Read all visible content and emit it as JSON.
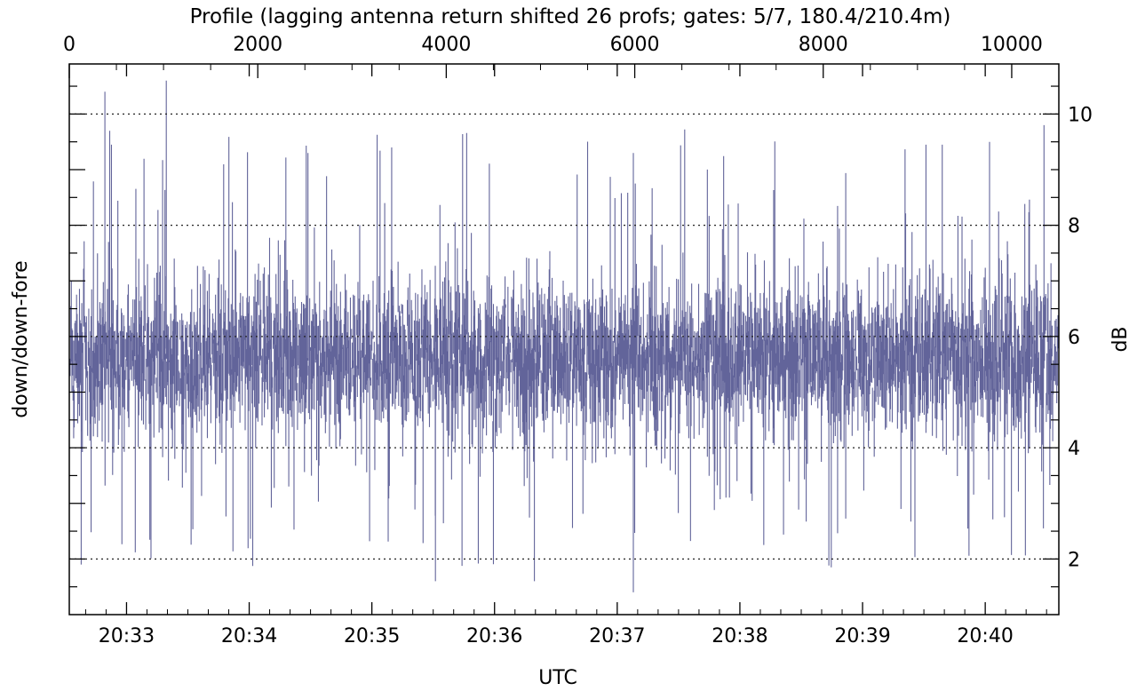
{
  "chart_data": {
    "type": "line",
    "title": "Profile (lagging antenna return shifted 26 profs; gates: 5/7, 180.4/210.4m)",
    "xlabel": "UTC",
    "ylabel_left": "down/down-fore",
    "ylabel_right": "dB",
    "bottom_axis": {
      "tick_labels": [
        "20:33",
        "20:34",
        "20:35",
        "20:36",
        "20:37",
        "20:38",
        "20:39",
        "20:40"
      ],
      "range_minutes": [
        "20:32:32",
        "20:40:36"
      ]
    },
    "top_axis": {
      "tick_labels": [
        "0",
        "2000",
        "4000",
        "6000",
        "8000",
        "10000"
      ],
      "range": [
        0,
        10500
      ]
    },
    "ylim": [
      1.0,
      10.9
    ],
    "right_tick_labels": [
      "2",
      "4",
      "6",
      "8",
      "10"
    ],
    "gridlines_y": [
      2,
      4,
      6,
      8,
      10
    ],
    "grid": "dotted-horizontal",
    "series": [
      {
        "color": "#62649a",
        "summary": {
          "mean": 5.6,
          "typical_min": 3.6,
          "typical_max": 7.2,
          "min": 1.4,
          "max": 10.6
        }
      }
    ]
  }
}
